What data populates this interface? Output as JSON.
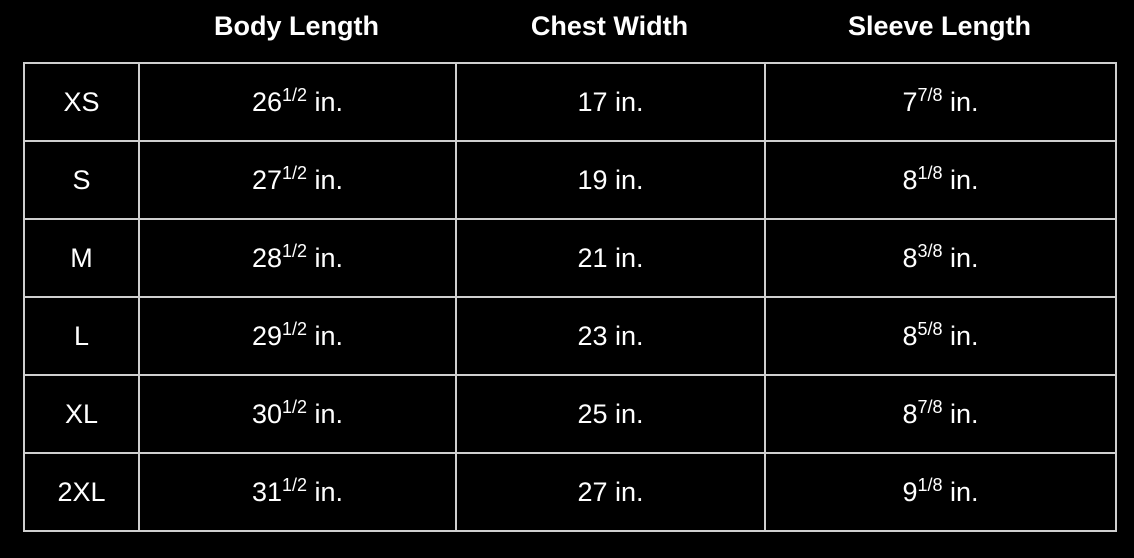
{
  "headers": [
    "Body Length",
    "Chest Width",
    "Sleeve Length"
  ],
  "unit": "in.",
  "rows": [
    {
      "size": "XS",
      "body": [
        "26",
        "1/2"
      ],
      "chest": [
        "17",
        ""
      ],
      "sleeve": [
        "7",
        "7/8"
      ]
    },
    {
      "size": "S",
      "body": [
        "27",
        "1/2"
      ],
      "chest": [
        "19",
        ""
      ],
      "sleeve": [
        "8",
        "1/8"
      ]
    },
    {
      "size": "M",
      "body": [
        "28",
        "1/2"
      ],
      "chest": [
        "21",
        ""
      ],
      "sleeve": [
        "8",
        "3/8"
      ]
    },
    {
      "size": "L",
      "body": [
        "29",
        "1/2"
      ],
      "chest": [
        "23",
        ""
      ],
      "sleeve": [
        "8",
        "5/8"
      ]
    },
    {
      "size": "XL",
      "body": [
        "30",
        "1/2"
      ],
      "chest": [
        "25",
        ""
      ],
      "sleeve": [
        "8",
        "7/8"
      ]
    },
    {
      "size": "2XL",
      "body": [
        "31",
        "1/2"
      ],
      "chest": [
        "27",
        ""
      ],
      "sleeve": [
        "9",
        "1/8"
      ]
    }
  ]
}
